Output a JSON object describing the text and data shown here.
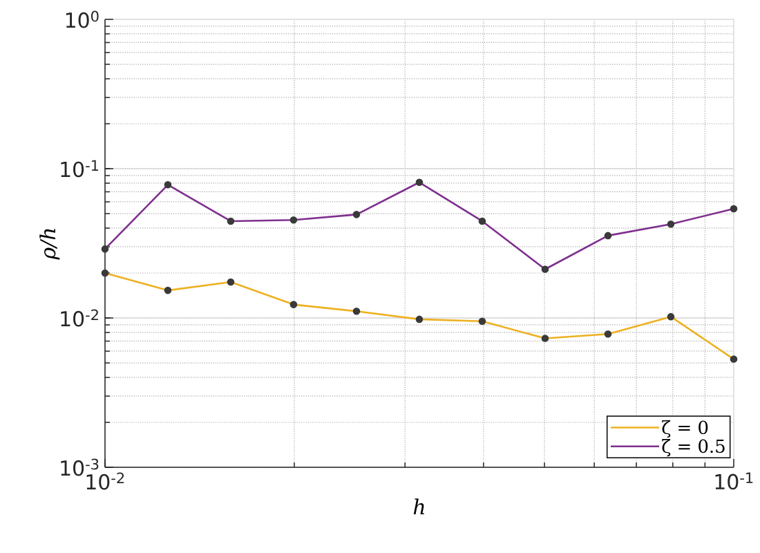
{
  "chart_data": {
    "type": "line",
    "xlabel": "h",
    "ylabel": "ρ/h",
    "x": [
      0.01,
      0.012589,
      0.015849,
      0.019953,
      0.025119,
      0.031623,
      0.039811,
      0.050119,
      0.063096,
      0.079433,
      0.1
    ],
    "series": [
      {
        "name": "ζ = 0",
        "color": "#edb120",
        "values": [
          0.02,
          0.0153,
          0.0174,
          0.0123,
          0.0111,
          0.0098,
          0.0095,
          0.0073,
          0.0078,
          0.0102,
          0.0053
        ]
      },
      {
        "name": "ζ = 0.5",
        "color": "#7e2f8e",
        "values": [
          0.029,
          0.078,
          0.0445,
          0.0453,
          0.0493,
          0.081,
          0.0445,
          0.0212,
          0.0356,
          0.0425,
          0.0539
        ]
      }
    ],
    "log": "xy",
    "xlim": [
      0.01,
      0.1
    ],
    "ylim": [
      0.001,
      1
    ],
    "xticks": [
      {
        "value": 0.01,
        "label": "10$^{-2}$"
      },
      {
        "value": 0.1,
        "label": "10$^{-1}$"
      }
    ],
    "yticks": [
      {
        "value": 0.001,
        "label": "10$^{-3}$"
      },
      {
        "value": 0.01,
        "label": "10$^{-2}$"
      },
      {
        "value": 0.1,
        "label": "10$^{-1}$"
      },
      {
        "value": 1,
        "label": "10$^{0}$"
      }
    ],
    "grid": true,
    "legend": "bottom right",
    "marker": "circle",
    "line_style": "solid"
  }
}
